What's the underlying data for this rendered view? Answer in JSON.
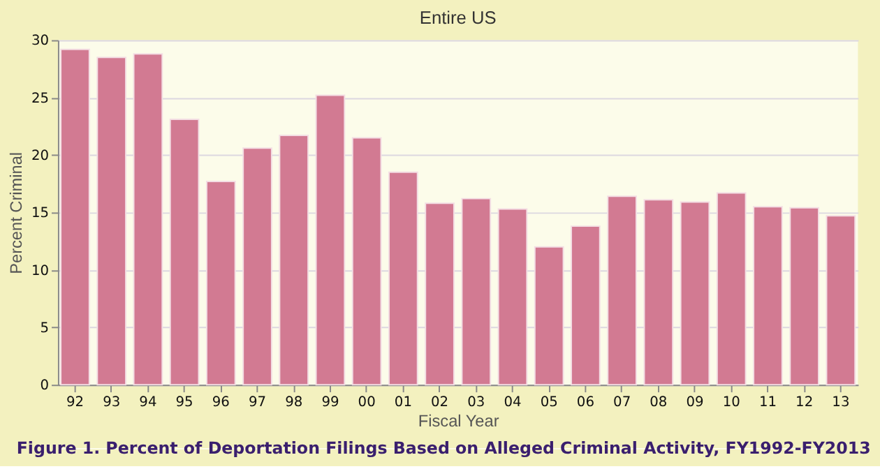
{
  "chart_data": {
    "type": "bar",
    "title": "Entire US",
    "xlabel": "Fiscal Year",
    "ylabel": "Percent Criminal",
    "categories": [
      "92",
      "93",
      "94",
      "95",
      "96",
      "97",
      "98",
      "99",
      "00",
      "01",
      "02",
      "03",
      "04",
      "05",
      "06",
      "07",
      "08",
      "09",
      "10",
      "11",
      "12",
      "13"
    ],
    "series": [
      {
        "color": "#d27a92",
        "values": [
          29.2,
          28.5,
          28.8,
          23.1,
          17.7,
          20.6,
          21.7,
          25.2,
          21.5,
          18.5,
          15.8,
          16.2,
          15.3,
          12.0,
          13.8,
          16.4,
          16.1,
          15.9,
          16.7,
          15.5,
          15.4,
          14.7
        ]
      }
    ],
    "ylim": [
      0,
      30
    ],
    "yticks": [
      0,
      5,
      10,
      15,
      20,
      25,
      30
    ],
    "grid": "y",
    "annotations": [
      "Figure 1. Percent of Deportation Filings Based on Alleged Criminal Activity, FY1992-FY2013"
    ]
  }
}
